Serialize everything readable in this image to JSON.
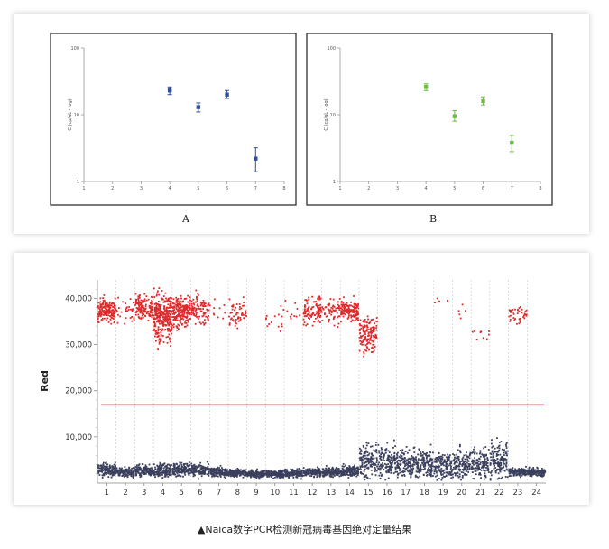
{
  "caption": "▲Naica数字PCR检测新冠病毒基因绝对定量结果",
  "chart_data": [
    {
      "id": "A",
      "type": "scatter",
      "panel_label": "A",
      "ylabel": "C (cp/uL - log)",
      "y_scale": "log",
      "ylim": [
        1,
        100
      ],
      "y_ticks": [
        "1",
        "10",
        "100"
      ],
      "xlim": [
        1,
        8
      ],
      "x_ticks": [
        "1",
        "2",
        "3",
        "4",
        "5",
        "6",
        "7",
        "8"
      ],
      "grid": false,
      "points": [
        {
          "x": 4,
          "y": 23,
          "err_low": 20,
          "err_high": 26,
          "color": "#2e4f9e"
        },
        {
          "x": 5,
          "y": 13,
          "err_low": 11,
          "err_high": 15,
          "color": "#2e4f9e"
        },
        {
          "x": 6,
          "y": 20,
          "err_low": 17.5,
          "err_high": 23,
          "color": "#2e4f9e"
        },
        {
          "x": 7,
          "y": 2.2,
          "err_low": 1.4,
          "err_high": 3.2,
          "color": "#2e4f9e"
        }
      ]
    },
    {
      "id": "B",
      "type": "scatter",
      "panel_label": "B",
      "ylabel": "C (cp/uL - log)",
      "y_scale": "log",
      "ylim": [
        1,
        100
      ],
      "y_ticks": [
        "1",
        "10",
        "100"
      ],
      "xlim": [
        1,
        8
      ],
      "x_ticks": [
        "1",
        "2",
        "3",
        "4",
        "5",
        "6",
        "7",
        "8"
      ],
      "grid": false,
      "points": [
        {
          "x": 4,
          "y": 26,
          "err_low": 23,
          "err_high": 29,
          "color": "#6cbf3f"
        },
        {
          "x": 5,
          "y": 9.5,
          "err_low": 8,
          "err_high": 11.5,
          "color": "#6cbf3f"
        },
        {
          "x": 6,
          "y": 16,
          "err_low": 14,
          "err_high": 18.5,
          "color": "#6cbf3f"
        },
        {
          "x": 7,
          "y": 3.8,
          "err_low": 2.8,
          "err_high": 4.9,
          "color": "#6cbf3f"
        }
      ]
    },
    {
      "id": "C",
      "type": "scatter",
      "ylabel": "Red",
      "ylim": [
        0,
        44000
      ],
      "y_ticks": [
        {
          "value": 10000,
          "label": "10,000"
        },
        {
          "value": 20000,
          "label": "20,000"
        },
        {
          "value": 30000,
          "label": "30,000"
        },
        {
          "value": 40000,
          "label": "40,000"
        }
      ],
      "x_ticks": [
        "1",
        "2",
        "3",
        "4",
        "5",
        "6",
        "7",
        "8",
        "9",
        "10",
        "11",
        "12",
        "13",
        "14",
        "15",
        "16",
        "17",
        "18",
        "19",
        "20",
        "21",
        "22",
        "23",
        "24"
      ],
      "threshold": 17000,
      "grid": "vertical dashed separators",
      "colors": {
        "positive": "#e0282a",
        "negative": "#3a3f5c",
        "threshold": "#e0282a"
      },
      "wells": [
        {
          "well": 1,
          "pos_center": 37500,
          "pos_count": 34,
          "pos_spread": 2000,
          "neg_center": 2800,
          "neg_spread": 700
        },
        {
          "well": 2,
          "pos_center": 37000,
          "pos_count": 6,
          "pos_spread": 2500,
          "neg_center": 2400,
          "neg_spread": 500
        },
        {
          "well": 3,
          "pos_center": 38000,
          "pos_count": 30,
          "pos_spread": 2000,
          "neg_center": 2600,
          "neg_spread": 600
        },
        {
          "well": 4,
          "pos_center": 36000,
          "pos_count": 60,
          "pos_spread": 4500,
          "neg_center": 2800,
          "neg_spread": 700
        },
        {
          "well": 5,
          "pos_center": 37000,
          "pos_count": 40,
          "pos_spread": 3000,
          "neg_center": 3000,
          "neg_spread": 700
        },
        {
          "well": 6,
          "pos_center": 37500,
          "pos_count": 20,
          "pos_spread": 2500,
          "neg_center": 2800,
          "neg_spread": 600
        },
        {
          "well": 7,
          "pos_center": 37000,
          "pos_count": 2,
          "pos_spread": 3000,
          "neg_center": 2400,
          "neg_spread": 500
        },
        {
          "well": 8,
          "pos_center": 37000,
          "pos_count": 12,
          "pos_spread": 2500,
          "neg_center": 2200,
          "neg_spread": 400
        },
        {
          "well": 9,
          "pos_center": 37000,
          "pos_count": 0,
          "pos_spread": 2000,
          "neg_center": 2000,
          "neg_spread": 400
        },
        {
          "well": 10,
          "pos_center": 36000,
          "pos_count": 3,
          "pos_spread": 3000,
          "neg_center": 2000,
          "neg_spread": 400
        },
        {
          "well": 11,
          "pos_center": 36000,
          "pos_count": 2,
          "pos_spread": 3000,
          "neg_center": 2100,
          "neg_spread": 400
        },
        {
          "well": 12,
          "pos_center": 37500,
          "pos_count": 22,
          "pos_spread": 2500,
          "neg_center": 2300,
          "neg_spread": 400
        },
        {
          "well": 13,
          "pos_center": 37500,
          "pos_count": 12,
          "pos_spread": 2500,
          "neg_center": 2400,
          "neg_spread": 500
        },
        {
          "well": 14,
          "pos_center": 37500,
          "pos_count": 30,
          "pos_spread": 1800,
          "neg_center": 2600,
          "neg_spread": 600
        },
        {
          "well": 15,
          "pos_center": 32000,
          "pos_count": 30,
          "pos_spread": 3500,
          "neg_center": 5000,
          "neg_spread": 1800
        },
        {
          "well": 16,
          "pos_center": 37000,
          "pos_count": 0,
          "pos_spread": 2000,
          "neg_center": 4500,
          "neg_spread": 1600
        },
        {
          "well": 17,
          "pos_center": 37000,
          "pos_count": 0,
          "pos_spread": 2000,
          "neg_center": 4300,
          "neg_spread": 1500
        },
        {
          "well": 18,
          "pos_center": 37000,
          "pos_count": 0,
          "pos_spread": 2000,
          "neg_center": 4200,
          "neg_spread": 1500
        },
        {
          "well": 19,
          "pos_center": 39500,
          "pos_count": 1,
          "pos_spread": 500,
          "neg_center": 3800,
          "neg_spread": 1400
        },
        {
          "well": 20,
          "pos_center": 37000,
          "pos_count": 1,
          "pos_spread": 2000,
          "neg_center": 4000,
          "neg_spread": 1500
        },
        {
          "well": 21,
          "pos_center": 33000,
          "pos_count": 2,
          "pos_spread": 2000,
          "neg_center": 4200,
          "neg_spread": 1600
        },
        {
          "well": 22,
          "pos_center": 37000,
          "pos_count": 0,
          "pos_spread": 2000,
          "neg_center": 4800,
          "neg_spread": 1800
        },
        {
          "well": 23,
          "pos_center": 36500,
          "pos_count": 8,
          "pos_spread": 1500,
          "neg_center": 2400,
          "neg_spread": 400
        },
        {
          "well": 24,
          "pos_center": 37000,
          "pos_count": 0,
          "pos_spread": 2000,
          "neg_center": 2300,
          "neg_spread": 400
        }
      ]
    }
  ]
}
